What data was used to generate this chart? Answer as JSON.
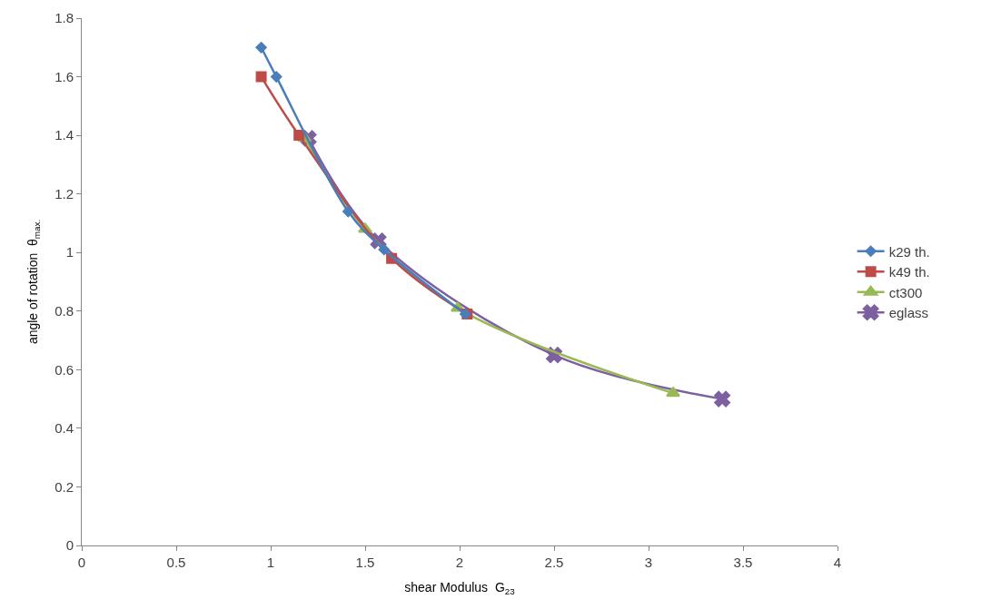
{
  "chart_data": {
    "type": "line",
    "xlabel": "shear Modulus  G$_{23}$",
    "ylabel": "angle of rotation  θ$_{max.}$",
    "xlim": [
      0,
      4
    ],
    "xticks": [
      0,
      0.5,
      1,
      1.5,
      2,
      2.5,
      3,
      3.5,
      4
    ],
    "ylim": [
      0,
      1.8
    ],
    "yticks": [
      0,
      0.2,
      0.4,
      0.6,
      0.8,
      1,
      1.2,
      1.4,
      1.6,
      1.8
    ],
    "legend": "right",
    "line_style": "solid",
    "series": [
      {
        "name": "k29 th.",
        "color": "#4a7ebb",
        "marker": "diamond",
        "x": [
          0.95,
          1.03,
          1.41,
          1.6,
          2.03
        ],
        "values": [
          1.7,
          1.6,
          1.14,
          1.01,
          0.79
        ]
      },
      {
        "name": "k49 th.",
        "color": "#be4b48",
        "marker": "square",
        "x": [
          0.95,
          1.15,
          1.64,
          2.04
        ],
        "values": [
          1.6,
          1.4,
          0.98,
          0.79
        ]
      },
      {
        "name": "ct300",
        "color": "#98b954",
        "marker": "triangle",
        "x": [
          1.18,
          1.5,
          1.99,
          3.13
        ],
        "values": [
          1.39,
          1.08,
          0.81,
          0.52
        ]
      },
      {
        "name": "eglass",
        "color": "#7d60a0",
        "marker": "cross",
        "x": [
          1.2,
          1.57,
          2.5,
          3.39
        ],
        "values": [
          1.39,
          1.04,
          0.65,
          0.5
        ]
      }
    ]
  }
}
